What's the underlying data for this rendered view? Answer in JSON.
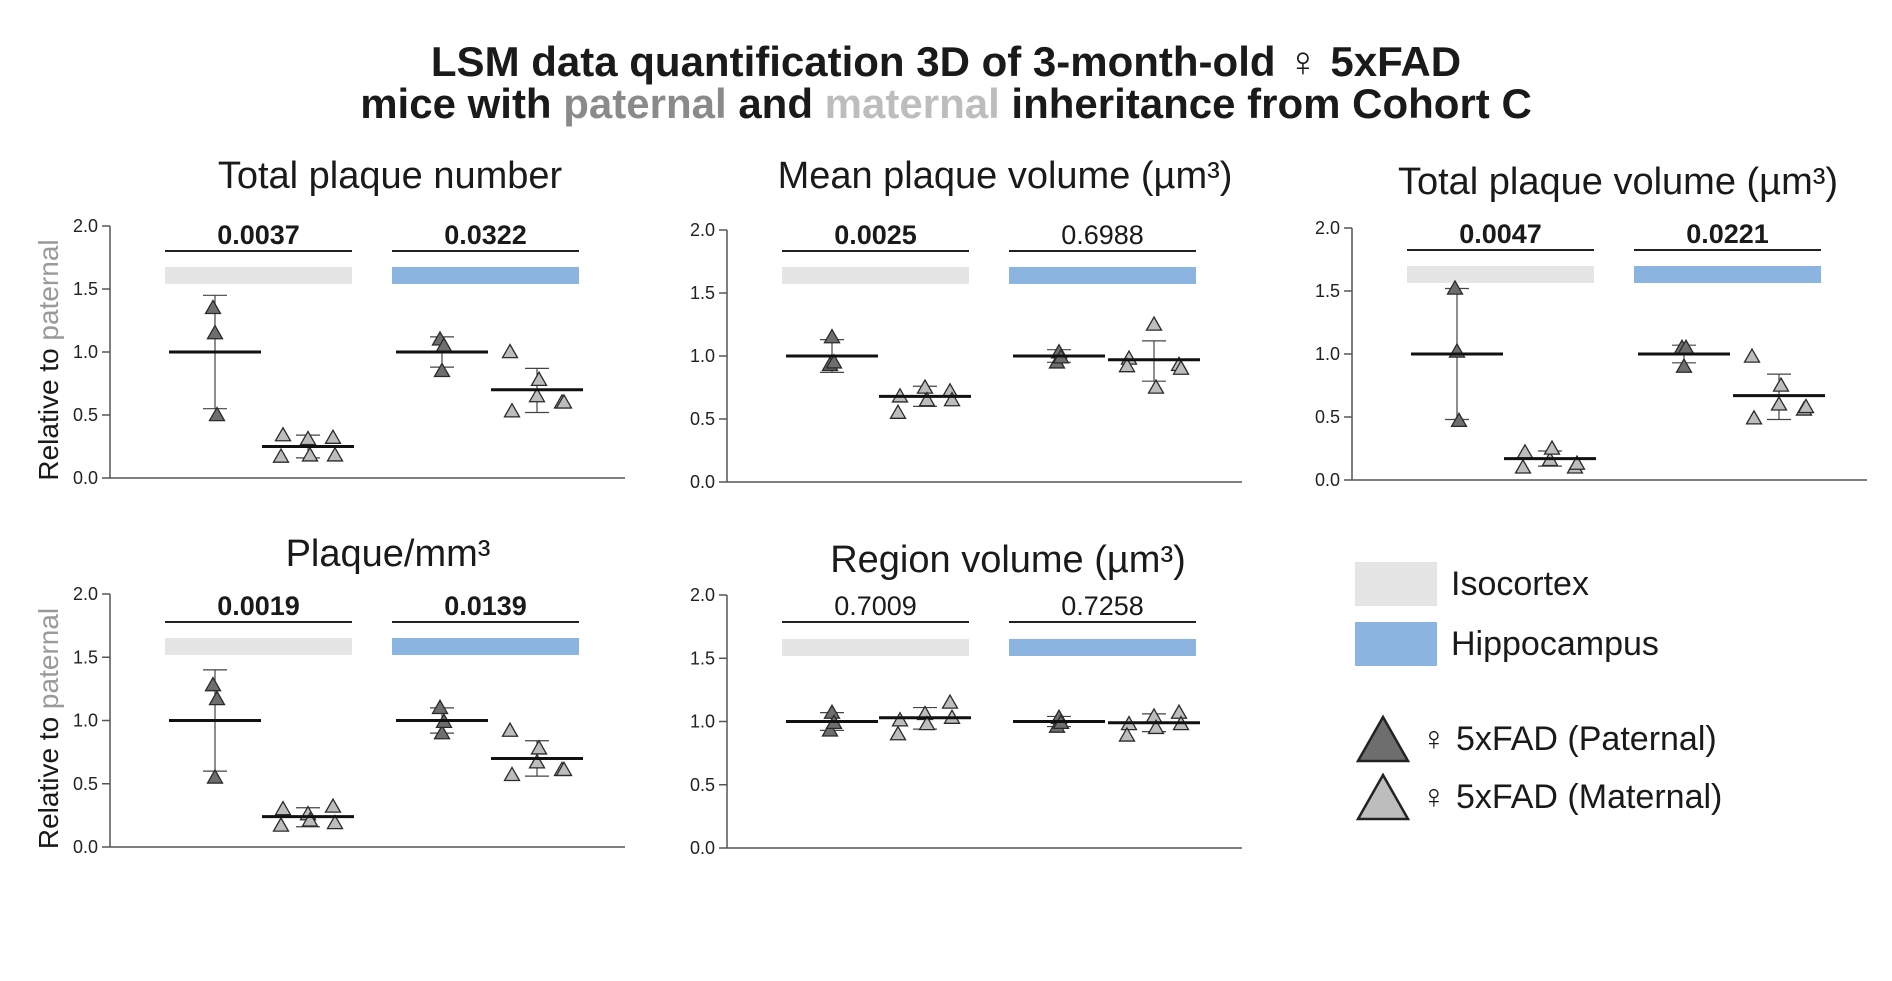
{
  "title": {
    "line1": "LSM data quantification 3D of 3-month-old ♀ 5xFAD",
    "line2_pre": "mice with ",
    "line2_paternal": "paternal",
    "line2_and": " and ",
    "line2_maternal": "maternal",
    "line2_post": " inheritance from Cohort C"
  },
  "colors": {
    "isocortex": "#e5e5e5",
    "hippocampus": "#8cb4e0",
    "paternal": "#6e6e6e",
    "maternal": "#bdbdbd",
    "axis": "#555555"
  },
  "y_axis_label": {
    "pre": "Relative to ",
    "highlight": "paternal"
  },
  "legend": {
    "isocortex": "Isocortex",
    "hippocampus": "Hippocampus",
    "paternal": "♀ 5xFAD (Paternal)",
    "maternal": "♀ 5xFAD (Maternal)"
  },
  "chart_data": [
    {
      "type": "scatter",
      "title": "Total plaque number",
      "ylabel": "Relative to paternal",
      "ylim": [
        0,
        2.0
      ],
      "yticks": [
        "0.0",
        "0.5",
        "1.0",
        "1.5",
        "2.0"
      ],
      "pvalues": [
        {
          "region": "Isocortex",
          "value": "0.0037",
          "bold": true
        },
        {
          "region": "Hippocampus",
          "value": "0.0322",
          "bold": true
        }
      ],
      "groups": [
        {
          "region": "Isocortex",
          "inheritance": "Paternal",
          "mean": 1.0,
          "sd_low": 0.55,
          "sd_high": 1.45,
          "points": [
            1.35,
            1.15,
            0.5
          ]
        },
        {
          "region": "Isocortex",
          "inheritance": "Maternal",
          "mean": 0.25,
          "sd_low": 0.16,
          "sd_high": 0.34,
          "points": [
            0.34,
            0.17,
            0.31,
            0.18,
            0.32,
            0.18
          ]
        },
        {
          "region": "Hippocampus",
          "inheritance": "Paternal",
          "mean": 1.0,
          "sd_low": 0.88,
          "sd_high": 1.12,
          "points": [
            1.1,
            0.85,
            1.05
          ]
        },
        {
          "region": "Hippocampus",
          "inheritance": "Maternal",
          "mean": 0.7,
          "sd_low": 0.52,
          "sd_high": 0.87,
          "points": [
            0.53,
            1.0,
            0.65,
            0.78,
            0.6,
            0.6
          ]
        }
      ]
    },
    {
      "type": "scatter",
      "title": "Mean plaque volume (µm³)",
      "ylim": [
        0,
        2.0
      ],
      "yticks": [
        "0.0",
        "0.5",
        "1.0",
        "1.5",
        "2.0"
      ],
      "pvalues": [
        {
          "region": "Isocortex",
          "value": "0.0025",
          "bold": true
        },
        {
          "region": "Hippocampus",
          "value": "0.6988",
          "bold": false
        }
      ],
      "groups": [
        {
          "region": "Isocortex",
          "inheritance": "Paternal",
          "mean": 1.0,
          "sd_low": 0.87,
          "sd_high": 1.13,
          "points": [
            0.93,
            1.15,
            0.95
          ]
        },
        {
          "region": "Isocortex",
          "inheritance": "Maternal",
          "mean": 0.68,
          "sd_low": 0.6,
          "sd_high": 0.76,
          "points": [
            0.68,
            0.55,
            0.75,
            0.65,
            0.72,
            0.65
          ]
        },
        {
          "region": "Hippocampus",
          "inheritance": "Paternal",
          "mean": 1.0,
          "sd_low": 0.95,
          "sd_high": 1.05,
          "points": [
            0.95,
            1.03,
            0.99
          ]
        },
        {
          "region": "Hippocampus",
          "inheritance": "Maternal",
          "mean": 0.97,
          "sd_low": 0.8,
          "sd_high": 1.12,
          "points": [
            0.98,
            0.92,
            1.25,
            0.75,
            0.93,
            0.9
          ]
        }
      ]
    },
    {
      "type": "scatter",
      "title": "Total plaque volume (µm³)",
      "ylim": [
        0,
        2.0
      ],
      "yticks": [
        "0.0",
        "0.5",
        "1.0",
        "1.5",
        "2.0"
      ],
      "pvalues": [
        {
          "region": "Isocortex",
          "value": "0.0047",
          "bold": true
        },
        {
          "region": "Hippocampus",
          "value": "0.0221",
          "bold": true
        }
      ],
      "groups": [
        {
          "region": "Isocortex",
          "inheritance": "Paternal",
          "mean": 1.0,
          "sd_low": 0.48,
          "sd_high": 1.52,
          "points": [
            1.52,
            1.02,
            0.47
          ]
        },
        {
          "region": "Isocortex",
          "inheritance": "Maternal",
          "mean": 0.17,
          "sd_low": 0.11,
          "sd_high": 0.23,
          "points": [
            0.22,
            0.1,
            0.16,
            0.25,
            0.1,
            0.13
          ]
        },
        {
          "region": "Hippocampus",
          "inheritance": "Paternal",
          "mean": 1.0,
          "sd_low": 0.93,
          "sd_high": 1.07,
          "points": [
            1.05,
            0.9,
            1.05
          ]
        },
        {
          "region": "Hippocampus",
          "inheritance": "Maternal",
          "mean": 0.67,
          "sd_low": 0.48,
          "sd_high": 0.84,
          "points": [
            0.49,
            0.98,
            0.6,
            0.75,
            0.56,
            0.58
          ]
        }
      ]
    },
    {
      "type": "scatter",
      "title": "Plaque/mm³",
      "ylabel": "Relative to paternal",
      "ylim": [
        0,
        2.0
      ],
      "yticks": [
        "0.0",
        "0.5",
        "1.0",
        "1.5",
        "2.0"
      ],
      "pvalues": [
        {
          "region": "Isocortex",
          "value": "0.0019",
          "bold": true
        },
        {
          "region": "Hippocampus",
          "value": "0.0139",
          "bold": true
        }
      ],
      "groups": [
        {
          "region": "Isocortex",
          "inheritance": "Paternal",
          "mean": 1.0,
          "sd_low": 0.6,
          "sd_high": 1.4,
          "points": [
            1.28,
            0.55,
            1.17
          ]
        },
        {
          "region": "Isocortex",
          "inheritance": "Maternal",
          "mean": 0.24,
          "sd_low": 0.16,
          "sd_high": 0.31,
          "points": [
            0.3,
            0.17,
            0.26,
            0.21,
            0.32,
            0.19
          ]
        },
        {
          "region": "Hippocampus",
          "inheritance": "Paternal",
          "mean": 1.0,
          "sd_low": 0.9,
          "sd_high": 1.1,
          "points": [
            1.1,
            0.9,
            0.99
          ]
        },
        {
          "region": "Hippocampus",
          "inheritance": "Maternal",
          "mean": 0.7,
          "sd_low": 0.56,
          "sd_high": 0.84,
          "points": [
            0.57,
            0.92,
            0.67,
            0.78,
            0.61,
            0.61
          ]
        }
      ]
    },
    {
      "type": "scatter",
      "title": "Region volume (µm³)",
      "ylim": [
        0,
        2.0
      ],
      "yticks": [
        "0.0",
        "0.5",
        "1.0",
        "1.5",
        "2.0"
      ],
      "pvalues": [
        {
          "region": "Isocortex",
          "value": "0.7009",
          "bold": false
        },
        {
          "region": "Hippocampus",
          "value": "0.7258",
          "bold": false
        }
      ],
      "groups": [
        {
          "region": "Isocortex",
          "inheritance": "Paternal",
          "mean": 1.0,
          "sd_low": 0.93,
          "sd_high": 1.07,
          "points": [
            0.93,
            1.07,
            0.99
          ]
        },
        {
          "region": "Isocortex",
          "inheritance": "Maternal",
          "mean": 1.03,
          "sd_low": 0.94,
          "sd_high": 1.11,
          "points": [
            1.01,
            0.9,
            1.06,
            0.98,
            1.15,
            1.03
          ]
        },
        {
          "region": "Hippocampus",
          "inheritance": "Paternal",
          "mean": 1.0,
          "sd_low": 0.96,
          "sd_high": 1.04,
          "points": [
            0.96,
            1.03,
            0.99
          ]
        },
        {
          "region": "Hippocampus",
          "inheritance": "Maternal",
          "mean": 0.99,
          "sd_low": 0.92,
          "sd_high": 1.06,
          "points": [
            0.98,
            0.89,
            1.04,
            0.95,
            1.07,
            0.98
          ]
        }
      ]
    }
  ]
}
